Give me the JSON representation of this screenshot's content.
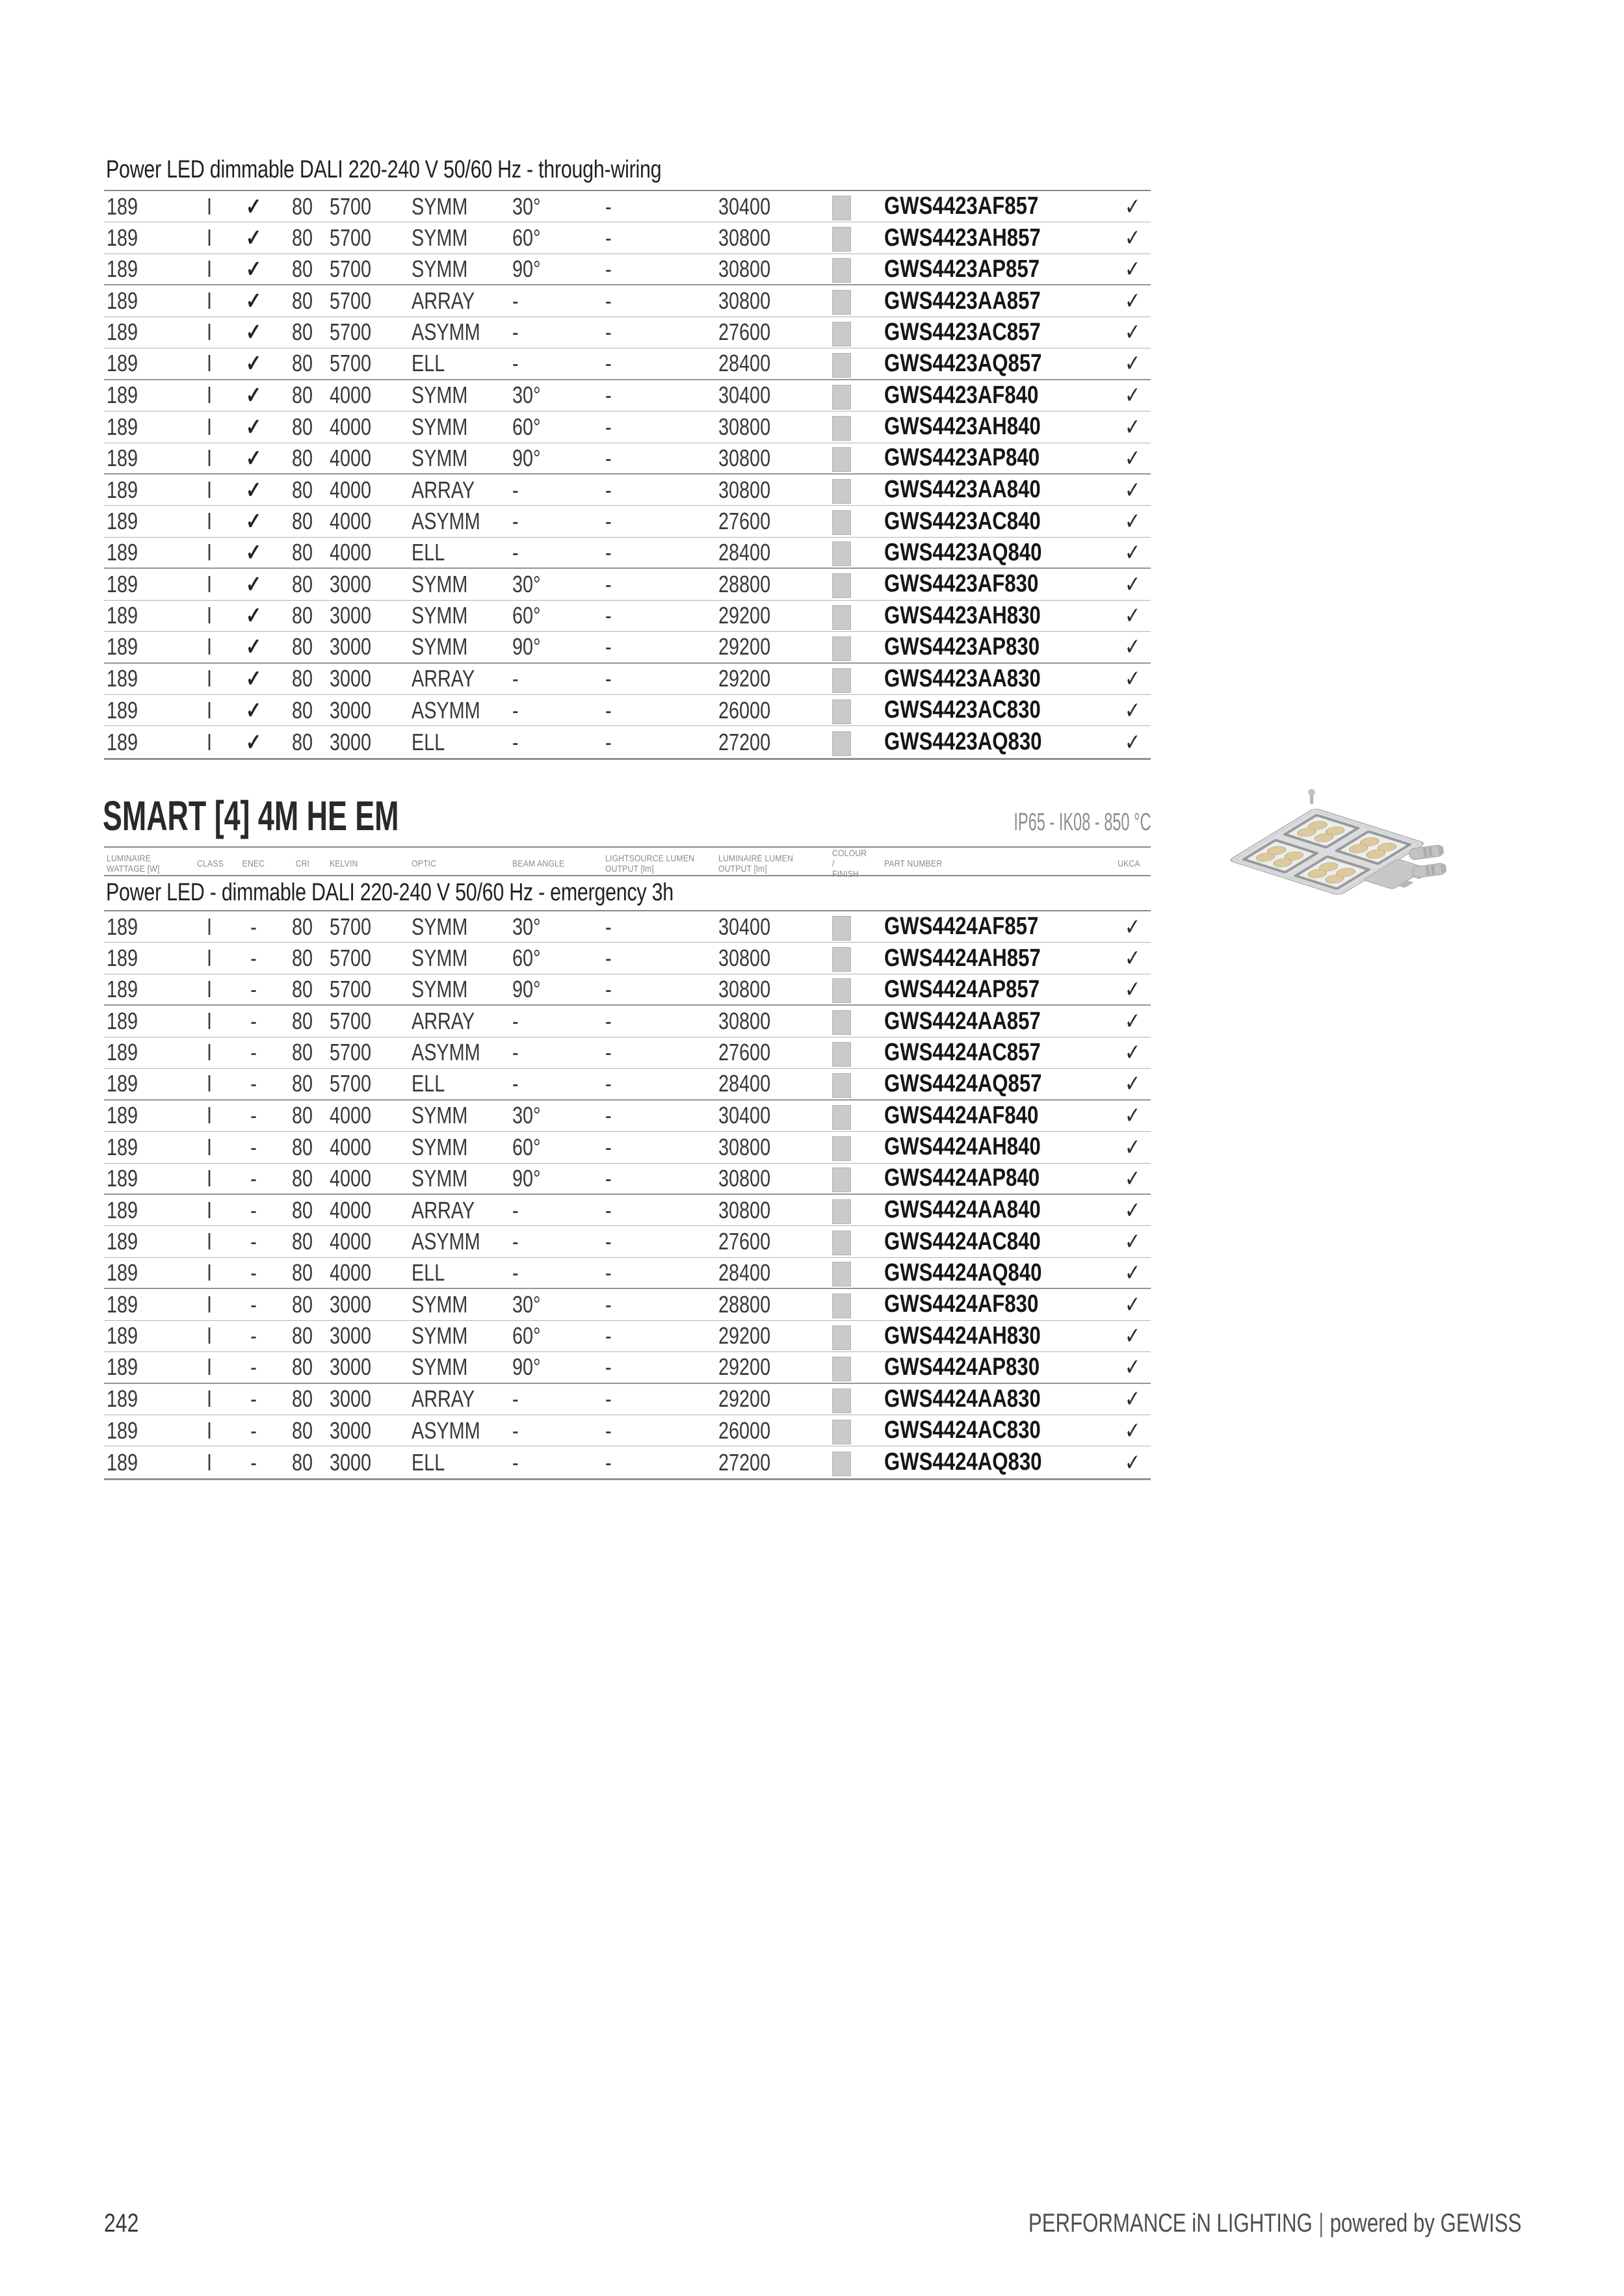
{
  "page": {
    "number": "242",
    "footer_brand": "PERFORMANCE iN LIGHTING",
    "footer_separator": "|",
    "footer_powered": "powered by GEWISS"
  },
  "colors": {
    "swatch": "#c9cacb"
  },
  "table_headers": [
    "LUMINAIRE\nWATTAGE [W]",
    "CLASS",
    "ENEC",
    "CRI",
    "KELVIN",
    "OPTIC",
    "BEAM ANGLE",
    "LIGHTSOURCE LUMEN\nOUTPUT [lm]",
    "LUMINAIRE LUMEN\nOUTPUT [lm]",
    "COLOUR /\nFINISH",
    "PART NUMBER",
    "UKCA"
  ],
  "section_top": {
    "subtitle": "Power LED dimmable DALI 220-240 V 50/60 Hz - through-wiring",
    "rows": [
      [
        "189",
        "I",
        "✓",
        "80",
        "5700",
        "SYMM",
        "30°",
        "-",
        "30400",
        "GWS4423AF857",
        "✓"
      ],
      [
        "189",
        "I",
        "✓",
        "80",
        "5700",
        "SYMM",
        "60°",
        "-",
        "30800",
        "GWS4423AH857",
        "✓"
      ],
      [
        "189",
        "I",
        "✓",
        "80",
        "5700",
        "SYMM",
        "90°",
        "-",
        "30800",
        "GWS4423AP857",
        "✓"
      ],
      [
        "189",
        "I",
        "✓",
        "80",
        "5700",
        "ARRAY",
        "-",
        "-",
        "30800",
        "GWS4423AA857",
        "✓"
      ],
      [
        "189",
        "I",
        "✓",
        "80",
        "5700",
        "ASYMM",
        "-",
        "-",
        "27600",
        "GWS4423AC857",
        "✓"
      ],
      [
        "189",
        "I",
        "✓",
        "80",
        "5700",
        "ELL",
        "-",
        "-",
        "28400",
        "GWS4423AQ857",
        "✓"
      ],
      [
        "189",
        "I",
        "✓",
        "80",
        "4000",
        "SYMM",
        "30°",
        "-",
        "30400",
        "GWS4423AF840",
        "✓"
      ],
      [
        "189",
        "I",
        "✓",
        "80",
        "4000",
        "SYMM",
        "60°",
        "-",
        "30800",
        "GWS4423AH840",
        "✓"
      ],
      [
        "189",
        "I",
        "✓",
        "80",
        "4000",
        "SYMM",
        "90°",
        "-",
        "30800",
        "GWS4423AP840",
        "✓"
      ],
      [
        "189",
        "I",
        "✓",
        "80",
        "4000",
        "ARRAY",
        "-",
        "-",
        "30800",
        "GWS4423AA840",
        "✓"
      ],
      [
        "189",
        "I",
        "✓",
        "80",
        "4000",
        "ASYMM",
        "-",
        "-",
        "27600",
        "GWS4423AC840",
        "✓"
      ],
      [
        "189",
        "I",
        "✓",
        "80",
        "4000",
        "ELL",
        "-",
        "-",
        "28400",
        "GWS4423AQ840",
        "✓"
      ],
      [
        "189",
        "I",
        "✓",
        "80",
        "3000",
        "SYMM",
        "30°",
        "-",
        "28800",
        "GWS4423AF830",
        "✓"
      ],
      [
        "189",
        "I",
        "✓",
        "80",
        "3000",
        "SYMM",
        "60°",
        "-",
        "29200",
        "GWS4423AH830",
        "✓"
      ],
      [
        "189",
        "I",
        "✓",
        "80",
        "3000",
        "SYMM",
        "90°",
        "-",
        "29200",
        "GWS4423AP830",
        "✓"
      ],
      [
        "189",
        "I",
        "✓",
        "80",
        "3000",
        "ARRAY",
        "-",
        "-",
        "29200",
        "GWS4423AA830",
        "✓"
      ],
      [
        "189",
        "I",
        "✓",
        "80",
        "3000",
        "ASYMM",
        "-",
        "-",
        "26000",
        "GWS4423AC830",
        "✓"
      ],
      [
        "189",
        "I",
        "✓",
        "80",
        "3000",
        "ELL",
        "-",
        "-",
        "27200",
        "GWS4423AQ830",
        "✓"
      ]
    ]
  },
  "section_smart": {
    "title": "SMART [4] 4M HE EM",
    "ratings": "IP65 - IK08 - 850 °C",
    "subtitle": "Power LED - dimmable DALI 220-240 V 50/60 Hz - emergency 3h",
    "rows": [
      [
        "189",
        "I",
        "-",
        "80",
        "5700",
        "SYMM",
        "30°",
        "-",
        "30400",
        "GWS4424AF857",
        "✓"
      ],
      [
        "189",
        "I",
        "-",
        "80",
        "5700",
        "SYMM",
        "60°",
        "-",
        "30800",
        "GWS4424AH857",
        "✓"
      ],
      [
        "189",
        "I",
        "-",
        "80",
        "5700",
        "SYMM",
        "90°",
        "-",
        "30800",
        "GWS4424AP857",
        "✓"
      ],
      [
        "189",
        "I",
        "-",
        "80",
        "5700",
        "ARRAY",
        "-",
        "-",
        "30800",
        "GWS4424AA857",
        "✓"
      ],
      [
        "189",
        "I",
        "-",
        "80",
        "5700",
        "ASYMM",
        "-",
        "-",
        "27600",
        "GWS4424AC857",
        "✓"
      ],
      [
        "189",
        "I",
        "-",
        "80",
        "5700",
        "ELL",
        "-",
        "-",
        "28400",
        "GWS4424AQ857",
        "✓"
      ],
      [
        "189",
        "I",
        "-",
        "80",
        "4000",
        "SYMM",
        "30°",
        "-",
        "30400",
        "GWS4424AF840",
        "✓"
      ],
      [
        "189",
        "I",
        "-",
        "80",
        "4000",
        "SYMM",
        "60°",
        "-",
        "30800",
        "GWS4424AH840",
        "✓"
      ],
      [
        "189",
        "I",
        "-",
        "80",
        "4000",
        "SYMM",
        "90°",
        "-",
        "30800",
        "GWS4424AP840",
        "✓"
      ],
      [
        "189",
        "I",
        "-",
        "80",
        "4000",
        "ARRAY",
        "-",
        "-",
        "30800",
        "GWS4424AA840",
        "✓"
      ],
      [
        "189",
        "I",
        "-",
        "80",
        "4000",
        "ASYMM",
        "-",
        "-",
        "27600",
        "GWS4424AC840",
        "✓"
      ],
      [
        "189",
        "I",
        "-",
        "80",
        "4000",
        "ELL",
        "-",
        "-",
        "28400",
        "GWS4424AQ840",
        "✓"
      ],
      [
        "189",
        "I",
        "-",
        "80",
        "3000",
        "SYMM",
        "30°",
        "-",
        "28800",
        "GWS4424AF830",
        "✓"
      ],
      [
        "189",
        "I",
        "-",
        "80",
        "3000",
        "SYMM",
        "60°",
        "-",
        "29200",
        "GWS4424AH830",
        "✓"
      ],
      [
        "189",
        "I",
        "-",
        "80",
        "3000",
        "SYMM",
        "90°",
        "-",
        "29200",
        "GWS4424AP830",
        "✓"
      ],
      [
        "189",
        "I",
        "-",
        "80",
        "3000",
        "ARRAY",
        "-",
        "-",
        "29200",
        "GWS4424AA830",
        "✓"
      ],
      [
        "189",
        "I",
        "-",
        "80",
        "3000",
        "ASYMM",
        "-",
        "-",
        "26000",
        "GWS4424AC830",
        "✓"
      ],
      [
        "189",
        "I",
        "-",
        "80",
        "3000",
        "ELL",
        "-",
        "-",
        "27200",
        "GWS4424AQ830",
        "✓"
      ]
    ]
  }
}
